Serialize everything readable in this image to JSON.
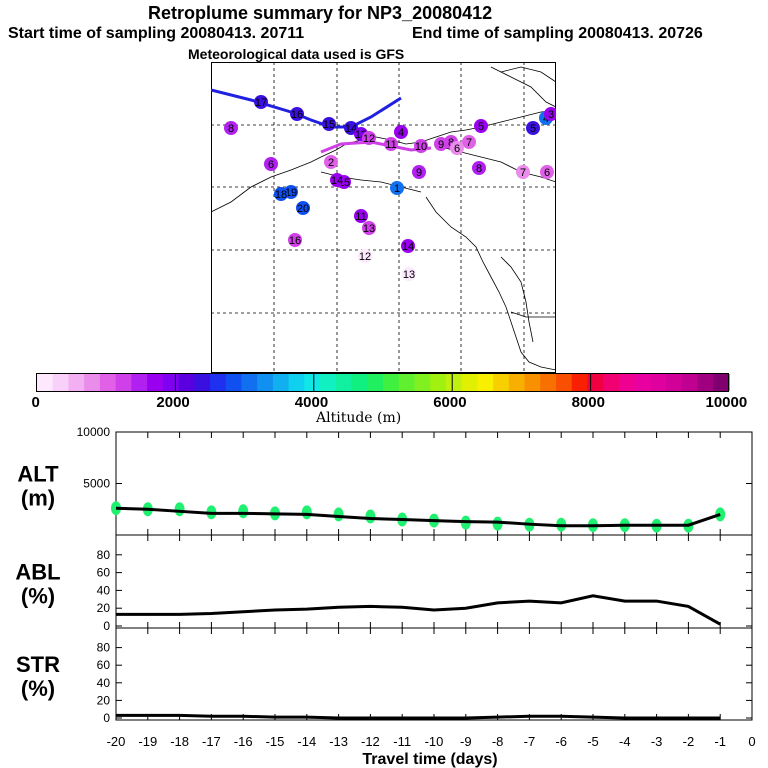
{
  "header": {
    "title": "Retroplume summary for NP3_20080412",
    "start_label": "Start time of sampling 20080413. 20711",
    "end_label": "End time of sampling 20080413. 20726",
    "met_label": "Meteorological data used is GFS"
  },
  "colorbar": {
    "label": "Altitude (m)",
    "ticks": [
      "0",
      "2000",
      "4000",
      "6000",
      "8000",
      "10000"
    ],
    "colors": [
      "#fde8fd",
      "#f9d0f9",
      "#f2b0f2",
      "#ea8cea",
      "#e060e8",
      "#d040e8",
      "#b020f0",
      "#9a00f0",
      "#8000f0",
      "#5a00e0",
      "#3a10e0",
      "#2030f0",
      "#1050f0",
      "#1070f0",
      "#1090f0",
      "#10b0f0",
      "#10d0f0",
      "#10e8e8",
      "#10f0c0",
      "#10f0a0",
      "#10f080",
      "#20f060",
      "#40f040",
      "#60f030",
      "#80f020",
      "#a0f010",
      "#c0f010",
      "#e0f000",
      "#f8f000",
      "#f8d000",
      "#f8b000",
      "#f89000",
      "#f87000",
      "#f85000",
      "#f82000",
      "#f00040",
      "#f00070",
      "#f00090",
      "#e800a0",
      "#e000a0",
      "#d00098",
      "#c00090",
      "#a00080",
      "#800070"
    ]
  },
  "chart_data": [
    {
      "type": "line",
      "panel": "ALT",
      "ylabel": "ALT\n(m)",
      "ylabel_lines": [
        "ALT",
        "(m)"
      ],
      "ylim": [
        0,
        10000
      ],
      "yticks": [
        "10000",
        "5000"
      ],
      "x": [
        -20,
        -19,
        -18,
        -17,
        -16,
        -15,
        -14,
        -13,
        -12,
        -11,
        -10,
        -9,
        -8,
        -7,
        -6,
        -5,
        -4,
        -3,
        -2,
        -1
      ],
      "values": [
        2600,
        2500,
        2300,
        2100,
        2100,
        2050,
        2000,
        1800,
        1600,
        1500,
        1400,
        1300,
        1250,
        1050,
        900,
        900,
        950,
        950,
        950,
        2000
      ],
      "markers": [
        2600,
        2500,
        2500,
        2200,
        2300,
        2100,
        2200,
        2000,
        1800,
        1500,
        1400,
        1200,
        1100,
        1000,
        1000,
        950,
        950,
        900,
        900,
        2000
      ]
    },
    {
      "type": "line",
      "panel": "ABL",
      "ylabel": "ABL\n(%)",
      "ylabel_lines": [
        "ABL",
        "(%)"
      ],
      "ylim": [
        0,
        100
      ],
      "yticks": [
        "80",
        "60",
        "40",
        "20",
        "0"
      ],
      "x": [
        -20,
        -19,
        -18,
        -17,
        -16,
        -15,
        -14,
        -13,
        -12,
        -11,
        -10,
        -9,
        -8,
        -7,
        -6,
        -5,
        -4,
        -3,
        -2,
        -1
      ],
      "values": [
        13,
        13,
        13,
        14,
        16,
        18,
        19,
        21,
        22,
        21,
        18,
        20,
        26,
        28,
        26,
        34,
        28,
        28,
        22,
        2
      ]
    },
    {
      "type": "line",
      "panel": "STR",
      "ylabel": "STR\n(%)",
      "ylabel_lines": [
        "STR",
        "(%)"
      ],
      "ylim": [
        0,
        100
      ],
      "yticks": [
        "80",
        "60",
        "40",
        "20",
        "0"
      ],
      "x": [
        -20,
        -19,
        -18,
        -17,
        -16,
        -15,
        -14,
        -13,
        -12,
        -11,
        -10,
        -9,
        -8,
        -7,
        -6,
        -5,
        -4,
        -3,
        -2,
        -1
      ],
      "values": [
        3,
        3,
        3,
        2,
        2,
        1,
        1,
        0,
        0,
        0,
        0,
        0,
        1,
        2,
        2,
        1,
        0,
        0,
        0,
        0
      ],
      "xlabel": "Travel time (days)",
      "xticks": [
        "-20",
        "-19",
        "-18",
        "-17",
        "-16",
        "-15",
        "-14",
        "-13",
        "-12",
        "-11",
        "-10",
        "-9",
        "-8",
        "-7",
        "-6",
        "-5",
        "-4",
        "-3",
        "-2",
        "-1",
        "0"
      ]
    }
  ],
  "map": {
    "points": [
      {
        "label": "17",
        "c": "#3a10e0"
      },
      {
        "label": "16",
        "c": "#3a10e0"
      },
      {
        "label": "15",
        "c": "#3a10e0"
      },
      {
        "label": "14",
        "c": "#3a10e0"
      },
      {
        "label": "13",
        "c": "#8000f0"
      },
      {
        "label": "12",
        "c": "#d040e8"
      },
      {
        "label": "11",
        "c": "#d040e8"
      },
      {
        "label": "10",
        "c": "#d040e8"
      },
      {
        "label": "9",
        "c": "#d040e8"
      },
      {
        "label": "8",
        "c": "#d040e8"
      },
      {
        "label": "7",
        "c": "#e060e8"
      },
      {
        "label": "6",
        "c": "#ea8cea"
      },
      {
        "label": "5",
        "c": "#3a10e0"
      },
      {
        "label": "4",
        "c": "#1070f0"
      },
      {
        "label": "3",
        "c": "#9a00f0"
      },
      {
        "label": "2",
        "c": "#e060e8"
      },
      {
        "label": "1",
        "c": "#1070f0"
      },
      {
        "label": "19",
        "c": "#1050f0"
      },
      {
        "label": "18",
        "c": "#1050f0"
      },
      {
        "label": "20",
        "c": "#1050f0"
      },
      {
        "label": "15",
        "c": "#9a00f0"
      },
      {
        "label": "14",
        "c": "#9a00f0"
      },
      {
        "label": "11",
        "c": "#9a00f0"
      },
      {
        "label": "13",
        "c": "#d040e8"
      },
      {
        "label": "16",
        "c": "#d040e8"
      },
      {
        "label": "14",
        "c": "#9a00f0"
      },
      {
        "label": "12",
        "c": "#fde8fd"
      },
      {
        "label": "13",
        "c": "#fde8fd"
      },
      {
        "label": "9",
        "c": "#b020f0"
      },
      {
        "label": "8",
        "c": "#b020f0"
      },
      {
        "label": "7",
        "c": "#ea8cea"
      },
      {
        "label": "6",
        "c": "#e060e8"
      },
      {
        "label": "8",
        "c": "#b020f0"
      },
      {
        "label": "5",
        "c": "#9a00f0"
      },
      {
        "label": "4",
        "c": "#9a00f0"
      },
      {
        "label": "6",
        "c": "#b020f0"
      }
    ]
  }
}
